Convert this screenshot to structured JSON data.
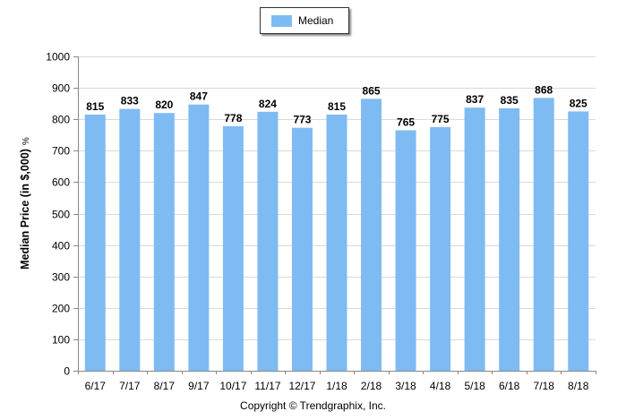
{
  "legend": {
    "label": "Median",
    "color": "#7fbbf3"
  },
  "copyright": "Copyright © Trendgraphix, Inc.",
  "chart_data": {
    "type": "bar",
    "categories": [
      "6/17",
      "7/17",
      "8/17",
      "9/17",
      "10/17",
      "11/17",
      "12/17",
      "1/18",
      "2/18",
      "3/18",
      "4/18",
      "5/18",
      "6/18",
      "7/18",
      "8/18"
    ],
    "series": [
      {
        "name": "Median",
        "values": [
          815,
          833,
          820,
          847,
          778,
          824,
          773,
          815,
          865,
          765,
          775,
          837,
          835,
          868,
          825
        ]
      }
    ],
    "ylabel": "Median Price (in $,000)",
    "ylabel_suffix": "%",
    "xlabel": "",
    "ylim": [
      0,
      1000
    ],
    "yticks": [
      0,
      100,
      200,
      300,
      400,
      500,
      600,
      700,
      800,
      900,
      1000
    ],
    "grid": true,
    "legend_position": "top-center",
    "bar_color": "#7fbbf3",
    "grid_color": "#d9d9d9"
  }
}
